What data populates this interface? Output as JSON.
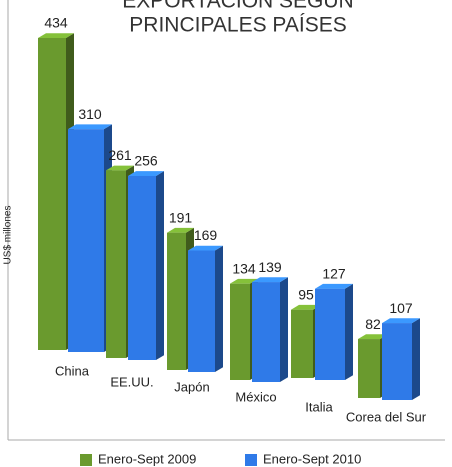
{
  "chart_data": {
    "type": "bar3d",
    "title": [
      "EXPORTACIÓN SEGÚN",
      "PRINCIPALES PAÍSES"
    ],
    "y_label": "US$ millones",
    "categories": [
      "China",
      "EE.UU.",
      "Japón",
      "México",
      "Italia",
      "Corea del Sur"
    ],
    "series": [
      {
        "name": "Enero-Sept 2009",
        "color": "#6a9a2e",
        "values": [
          434,
          261,
          191,
          134,
          95,
          82
        ]
      },
      {
        "name": "Enero-Sept 2010",
        "color": "#2f7ae8",
        "values": [
          310,
          256,
          169,
          139,
          127,
          107
        ]
      }
    ]
  }
}
